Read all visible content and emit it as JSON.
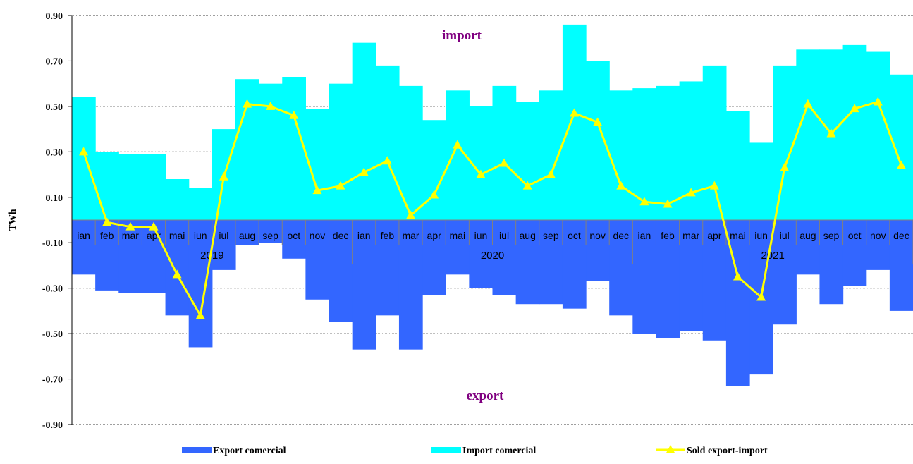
{
  "chart_data": {
    "type": "bar",
    "ylabel": "TWh",
    "ylim": [
      -0.9,
      0.9
    ],
    "yticks": [
      "0.90",
      "0.70",
      "0.50",
      "0.30",
      "0.10",
      "-0.10",
      "-0.30",
      "-0.50",
      "-0.70",
      "-0.90"
    ],
    "ytick_values": [
      0.9,
      0.7,
      0.5,
      0.3,
      0.1,
      -0.1,
      -0.3,
      -0.5,
      -0.7,
      -0.9
    ],
    "grid": true,
    "categories": [
      "ian",
      "feb",
      "mar",
      "apr",
      "mai",
      "iun",
      "iul",
      "aug",
      "sep",
      "oct",
      "nov",
      "dec",
      "ian",
      "feb",
      "mar",
      "apr",
      "mai",
      "iun",
      "iul",
      "aug",
      "sep",
      "oct",
      "nov",
      "dec",
      "ian",
      "feb",
      "mar",
      "apr",
      "mai",
      "iun",
      "iul",
      "aug",
      "sep",
      "oct",
      "nov",
      "dec"
    ],
    "years": [
      "2019",
      "2020",
      "2021"
    ],
    "annotations": {
      "top": "import",
      "bottom": "export"
    },
    "series": [
      {
        "name": "Export comercial",
        "kind": "area-step",
        "color": "#3366FF",
        "values": [
          -0.24,
          -0.31,
          -0.32,
          -0.32,
          -0.42,
          -0.56,
          -0.22,
          -0.11,
          -0.1,
          -0.17,
          -0.35,
          -0.45,
          -0.57,
          -0.42,
          -0.57,
          -0.33,
          -0.24,
          -0.3,
          -0.33,
          -0.37,
          -0.37,
          -0.39,
          -0.27,
          -0.42,
          -0.5,
          -0.52,
          -0.49,
          -0.53,
          -0.73,
          -0.68,
          -0.46,
          -0.24,
          -0.37,
          -0.29,
          -0.22,
          -0.4
        ]
      },
      {
        "name": "Import comercial",
        "kind": "area-step",
        "color": "#00FFFF",
        "values": [
          0.54,
          0.3,
          0.29,
          0.29,
          0.18,
          0.14,
          0.4,
          0.62,
          0.6,
          0.63,
          0.49,
          0.6,
          0.78,
          0.68,
          0.59,
          0.44,
          0.57,
          0.5,
          0.59,
          0.52,
          0.57,
          0.86,
          0.7,
          0.57,
          0.58,
          0.59,
          0.61,
          0.68,
          0.48,
          0.34,
          0.68,
          0.75,
          0.75,
          0.77,
          0.74,
          0.64
        ]
      },
      {
        "name": "Sold export-import",
        "kind": "line",
        "color": "#FFFF00",
        "values": [
          0.3,
          -0.01,
          -0.03,
          -0.03,
          -0.24,
          -0.42,
          0.19,
          0.51,
          0.5,
          0.46,
          0.13,
          0.15,
          0.21,
          0.26,
          0.02,
          0.11,
          0.33,
          0.2,
          0.25,
          0.15,
          0.2,
          0.47,
          0.43,
          0.15,
          0.08,
          0.07,
          0.12,
          0.15,
          -0.25,
          -0.34,
          0.23,
          0.51,
          0.38,
          0.49,
          0.52,
          0.24
        ]
      }
    ],
    "legend": {
      "position": "bottom"
    }
  }
}
